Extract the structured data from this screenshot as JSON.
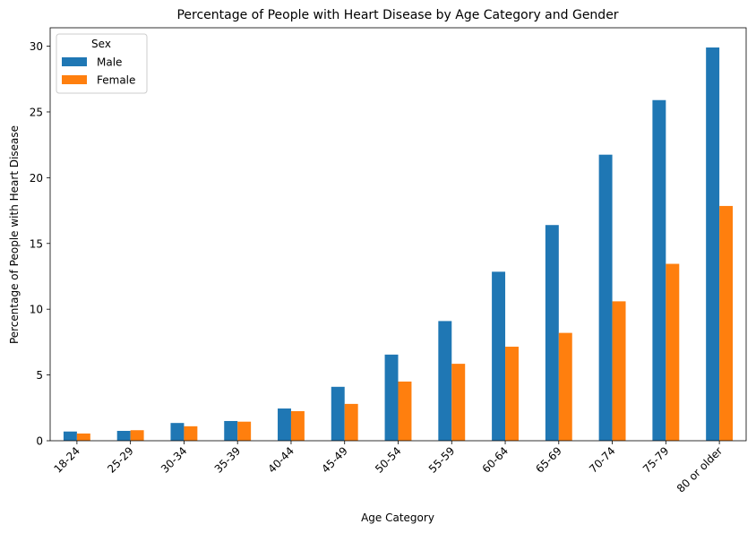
{
  "chart_data": {
    "type": "bar",
    "title": "Percentage of People with Heart Disease by Age Category and Gender",
    "xlabel": "Age Category",
    "ylabel": "Percentage of People with Heart Disease",
    "categories": [
      "18-24",
      "25-29",
      "30-34",
      "35-39",
      "40-44",
      "45-49",
      "50-54",
      "55-59",
      "60-64",
      "65-69",
      "70-74",
      "75-79",
      "80 or older"
    ],
    "series": [
      {
        "name": "Male",
        "color": "#1f77b4",
        "values": [
          0.7,
          0.75,
          1.35,
          1.5,
          2.45,
          4.1,
          6.55,
          9.1,
          12.85,
          16.4,
          21.75,
          25.9,
          29.9
        ]
      },
      {
        "name": "Female",
        "color": "#ff7f0e",
        "values": [
          0.55,
          0.8,
          1.1,
          1.45,
          2.25,
          2.8,
          4.5,
          5.85,
          7.15,
          8.2,
          10.6,
          13.45,
          17.85
        ]
      }
    ],
    "ylim": [
      0,
      31.4
    ],
    "yticks": [
      0,
      5,
      10,
      15,
      20,
      25,
      30
    ],
    "legend": {
      "title": "Sex",
      "position": "top-left"
    },
    "grid": false
  }
}
